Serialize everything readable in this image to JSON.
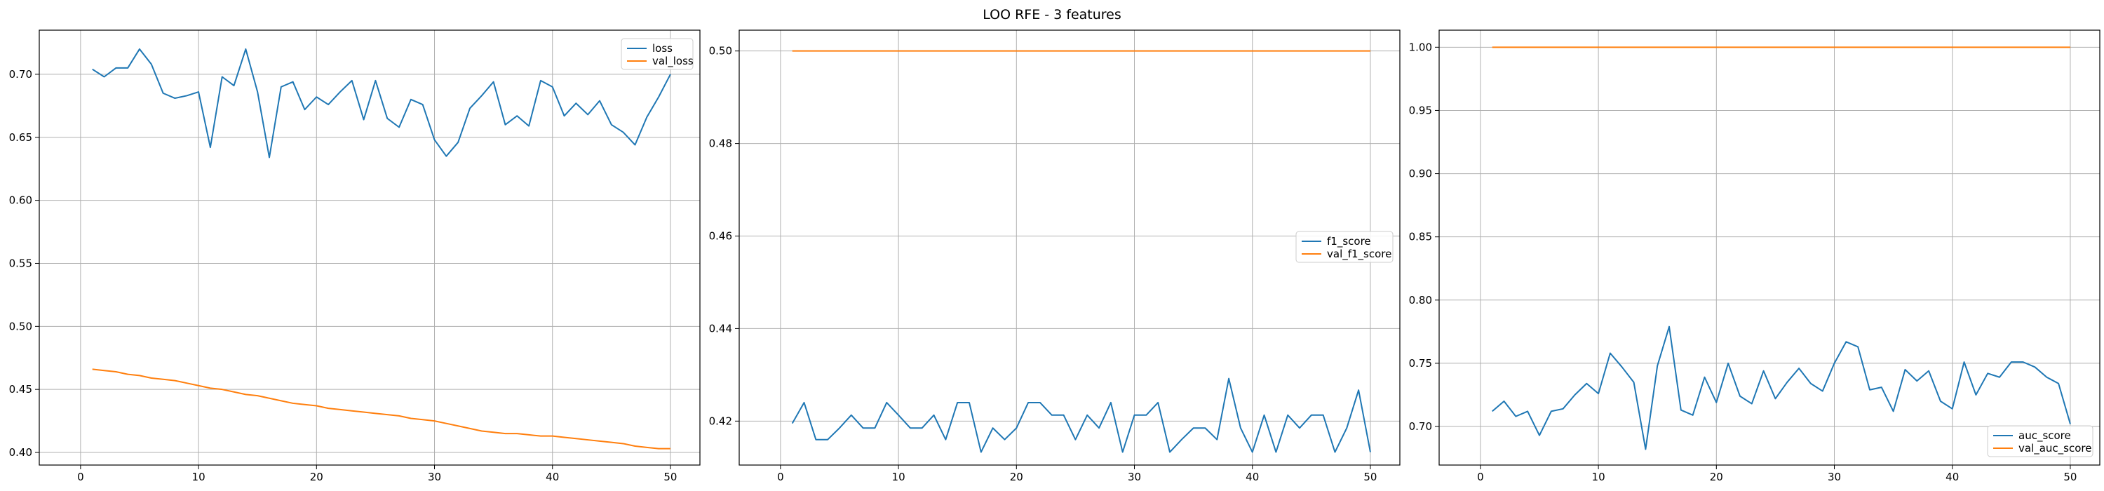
{
  "figure": {
    "title": "LOO RFE - 3 features"
  },
  "chart_data": [
    {
      "type": "line",
      "title": "",
      "xlabel": "",
      "ylabel": "",
      "xlim": [
        -3.5,
        52.5
      ],
      "ylim": [
        0.39,
        0.735
      ],
      "xticks": [
        0,
        10,
        20,
        30,
        40,
        50
      ],
      "yticks": [
        0.4,
        0.45,
        0.5,
        0.55,
        0.6,
        0.65,
        0.7
      ],
      "ytick_labels": [
        "0.40",
        "0.45",
        "0.50",
        "0.55",
        "0.60",
        "0.65",
        "0.70"
      ],
      "grid": true,
      "legend_position": "top-right",
      "x": [
        1,
        2,
        3,
        4,
        5,
        6,
        7,
        8,
        9,
        10,
        11,
        12,
        13,
        14,
        15,
        16,
        17,
        18,
        19,
        20,
        21,
        22,
        23,
        24,
        25,
        26,
        27,
        28,
        29,
        30,
        31,
        32,
        33,
        34,
        35,
        36,
        37,
        38,
        39,
        40,
        41,
        42,
        43,
        44,
        45,
        46,
        47,
        48,
        49,
        50
      ],
      "series": [
        {
          "name": "loss",
          "color": "#1f77b4",
          "values": [
            0.704,
            0.698,
            0.705,
            0.705,
            0.72,
            0.708,
            0.685,
            0.681,
            0.683,
            0.686,
            0.642,
            0.698,
            0.691,
            0.72,
            0.686,
            0.634,
            0.69,
            0.694,
            0.672,
            0.682,
            0.676,
            0.686,
            0.695,
            0.664,
            0.695,
            0.665,
            0.658,
            0.68,
            0.676,
            0.648,
            0.635,
            0.646,
            0.673,
            0.683,
            0.694,
            0.66,
            0.667,
            0.659,
            0.695,
            0.69,
            0.667,
            0.677,
            0.668,
            0.679,
            0.66,
            0.654,
            0.644,
            0.666,
            0.682,
            0.7
          ]
        },
        {
          "name": "val_loss",
          "color": "#ff7f0e",
          "values": [
            0.466,
            0.465,
            0.464,
            0.462,
            0.461,
            0.459,
            0.458,
            0.457,
            0.455,
            0.453,
            0.451,
            0.45,
            0.448,
            0.446,
            0.445,
            0.443,
            0.441,
            0.439,
            0.438,
            0.437,
            0.435,
            0.434,
            0.433,
            0.432,
            0.431,
            0.43,
            0.429,
            0.427,
            0.426,
            0.425,
            0.423,
            0.421,
            0.419,
            0.417,
            0.416,
            0.415,
            0.415,
            0.414,
            0.413,
            0.413,
            0.412,
            0.411,
            0.41,
            0.409,
            0.408,
            0.407,
            0.405,
            0.404,
            0.403,
            0.403
          ]
        }
      ]
    },
    {
      "type": "line",
      "title": "",
      "xlabel": "",
      "ylabel": "",
      "xlim": [
        -3.5,
        52.5
      ],
      "ylim": [
        0.4105,
        0.5045
      ],
      "xticks": [
        0,
        10,
        20,
        30,
        40,
        50
      ],
      "yticks": [
        0.42,
        0.44,
        0.46,
        0.48,
        0.5
      ],
      "ytick_labels": [
        "0.42",
        "0.44",
        "0.46",
        "0.48",
        "0.50"
      ],
      "grid": true,
      "legend_position": "center-right",
      "x": [
        1,
        2,
        3,
        4,
        5,
        6,
        7,
        8,
        9,
        10,
        11,
        12,
        13,
        14,
        15,
        16,
        17,
        18,
        19,
        20,
        21,
        22,
        23,
        24,
        25,
        26,
        27,
        28,
        29,
        30,
        31,
        32,
        33,
        34,
        35,
        36,
        37,
        38,
        39,
        40,
        41,
        42,
        43,
        44,
        45,
        46,
        47,
        48,
        49,
        50
      ],
      "series": [
        {
          "name": "f1_score",
          "color": "#1f77b4",
          "values": [
            0.4195,
            0.424,
            0.416,
            0.416,
            0.4185,
            0.4213,
            0.4185,
            0.4185,
            0.424,
            0.4213,
            0.4185,
            0.4185,
            0.4213,
            0.416,
            0.424,
            0.424,
            0.4133,
            0.4185,
            0.416,
            0.4185,
            0.424,
            0.424,
            0.4213,
            0.4213,
            0.416,
            0.4213,
            0.4185,
            0.424,
            0.4133,
            0.4213,
            0.4213,
            0.424,
            0.4133,
            0.416,
            0.4185,
            0.4185,
            0.416,
            0.4292,
            0.4185,
            0.4133,
            0.4213,
            0.4133,
            0.4213,
            0.4185,
            0.4213,
            0.4213,
            0.4133,
            0.4185,
            0.4267,
            0.4133
          ]
        },
        {
          "name": "val_f1_score",
          "color": "#ff7f0e",
          "values": [
            0.5,
            0.5,
            0.5,
            0.5,
            0.5,
            0.5,
            0.5,
            0.5,
            0.5,
            0.5,
            0.5,
            0.5,
            0.5,
            0.5,
            0.5,
            0.5,
            0.5,
            0.5,
            0.5,
            0.5,
            0.5,
            0.5,
            0.5,
            0.5,
            0.5,
            0.5,
            0.5,
            0.5,
            0.5,
            0.5,
            0.5,
            0.5,
            0.5,
            0.5,
            0.5,
            0.5,
            0.5,
            0.5,
            0.5,
            0.5,
            0.5,
            0.5,
            0.5,
            0.5,
            0.5,
            0.5,
            0.5,
            0.5,
            0.5,
            0.5
          ]
        }
      ]
    },
    {
      "type": "line",
      "title": "",
      "xlabel": "",
      "ylabel": "",
      "xlim": [
        -3.5,
        52.5
      ],
      "ylim": [
        0.6695,
        1.0135
      ],
      "xticks": [
        0,
        10,
        20,
        30,
        40,
        50
      ],
      "yticks": [
        0.7,
        0.75,
        0.8,
        0.85,
        0.9,
        0.95,
        1.0
      ],
      "ytick_labels": [
        "0.70",
        "0.75",
        "0.80",
        "0.85",
        "0.90",
        "0.95",
        "1.00"
      ],
      "grid": true,
      "legend_position": "bottom-right",
      "x": [
        1,
        2,
        3,
        4,
        5,
        6,
        7,
        8,
        9,
        10,
        11,
        12,
        13,
        14,
        15,
        16,
        17,
        18,
        19,
        20,
        21,
        22,
        23,
        24,
        25,
        26,
        27,
        28,
        29,
        30,
        31,
        32,
        33,
        34,
        35,
        36,
        37,
        38,
        39,
        40,
        41,
        42,
        43,
        44,
        45,
        46,
        47,
        48,
        49,
        50
      ],
      "series": [
        {
          "name": "auc_score",
          "color": "#1f77b4",
          "values": [
            0.712,
            0.72,
            0.708,
            0.712,
            0.693,
            0.712,
            0.714,
            0.725,
            0.734,
            0.726,
            0.758,
            0.747,
            0.735,
            0.682,
            0.748,
            0.779,
            0.713,
            0.709,
            0.739,
            0.719,
            0.75,
            0.724,
            0.718,
            0.744,
            0.722,
            0.735,
            0.746,
            0.734,
            0.728,
            0.75,
            0.767,
            0.763,
            0.729,
            0.731,
            0.712,
            0.745,
            0.736,
            0.744,
            0.72,
            0.714,
            0.751,
            0.725,
            0.742,
            0.739,
            0.751,
            0.751,
            0.747,
            0.739,
            0.734,
            0.702
          ]
        },
        {
          "name": "val_auc_score",
          "color": "#ff7f0e",
          "values": [
            1.0,
            1.0,
            1.0,
            1.0,
            1.0,
            1.0,
            1.0,
            1.0,
            1.0,
            1.0,
            1.0,
            1.0,
            1.0,
            1.0,
            1.0,
            1.0,
            1.0,
            1.0,
            1.0,
            1.0,
            1.0,
            1.0,
            1.0,
            1.0,
            1.0,
            1.0,
            1.0,
            1.0,
            1.0,
            1.0,
            1.0,
            1.0,
            1.0,
            1.0,
            1.0,
            1.0,
            1.0,
            1.0,
            1.0,
            1.0,
            1.0,
            1.0,
            1.0,
            1.0,
            1.0,
            1.0,
            1.0,
            1.0,
            1.0,
            1.0
          ]
        }
      ]
    }
  ]
}
